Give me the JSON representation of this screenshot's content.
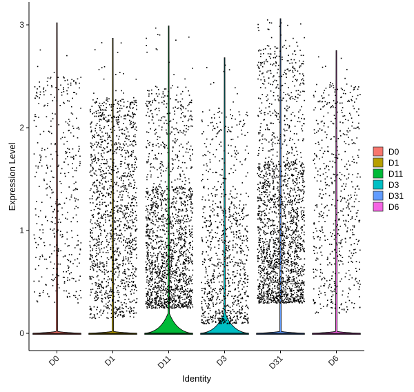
{
  "chart_data": {
    "type": "violin",
    "xlabel": "Identity",
    "ylabel": "Expression Level",
    "categories": [
      "D0",
      "D1",
      "D11",
      "D3",
      "D31",
      "D6"
    ],
    "ylim": [
      -0.17,
      3.2
    ],
    "yticks": [
      0,
      1,
      2,
      3
    ],
    "legend": {
      "position": "right",
      "entries": [
        {
          "name": "D0",
          "color": "#F8766D"
        },
        {
          "name": "D1",
          "color": "#B79F00"
        },
        {
          "name": "D11",
          "color": "#00BA38"
        },
        {
          "name": "D3",
          "color": "#00BFC4"
        },
        {
          "name": "D31",
          "color": "#619CFF"
        },
        {
          "name": "D6",
          "color": "#F564E3"
        }
      ]
    },
    "groups": [
      {
        "name": "D0",
        "max": 3.02,
        "violin_peak_width": 0.02,
        "n_points_nonzero": 420,
        "point_range": [
          0.3,
          2.5
        ]
      },
      {
        "name": "D1",
        "max": 2.87,
        "violin_peak_width": 0.02,
        "n_points_nonzero": 1400,
        "point_range": [
          0.15,
          2.3
        ]
      },
      {
        "name": "D11",
        "max": 2.99,
        "violin_peak_width": 0.42,
        "n_points_nonzero": 1700,
        "point_range": [
          0.25,
          2.4
        ]
      },
      {
        "name": "D3",
        "max": 2.68,
        "violin_peak_width": 0.42,
        "n_points_nonzero": 900,
        "point_range": [
          0.1,
          2.2
        ]
      },
      {
        "name": "D31",
        "max": 3.06,
        "violin_peak_width": 0.02,
        "n_points_nonzero": 2000,
        "point_range": [
          0.3,
          2.8
        ]
      },
      {
        "name": "D6",
        "max": 2.75,
        "violin_peak_width": 0.02,
        "n_points_nonzero": 600,
        "point_range": [
          0.2,
          2.45
        ]
      }
    ]
  }
}
